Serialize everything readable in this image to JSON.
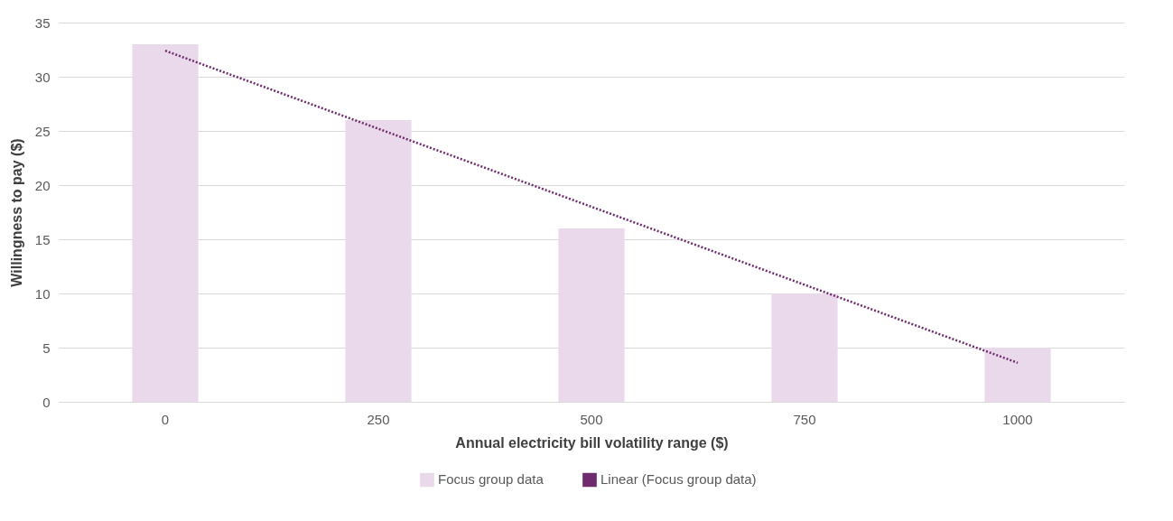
{
  "chart_data": {
    "type": "bar",
    "xlabel": "Annual electricity bill volatility range ($)",
    "ylabel": "Willingness to pay ($)",
    "categories": [
      "0",
      "250",
      "500",
      "750",
      "1000"
    ],
    "series": [
      {
        "name": "Focus group data",
        "color": "#ead9ea",
        "values": [
          33,
          26,
          16,
          10,
          5
        ]
      },
      {
        "name": "Linear (Focus group data)",
        "type": "line",
        "color": "#6e2c6e",
        "line_style": "dotted",
        "marker": "none",
        "values": [
          32.4,
          25.2,
          18,
          10.8,
          3.6
        ]
      }
    ],
    "ylim": [
      0,
      35
    ],
    "yticks": [
      0,
      5,
      10,
      15,
      20,
      25,
      30,
      35
    ],
    "grid": "y",
    "legend": "bottom"
  }
}
